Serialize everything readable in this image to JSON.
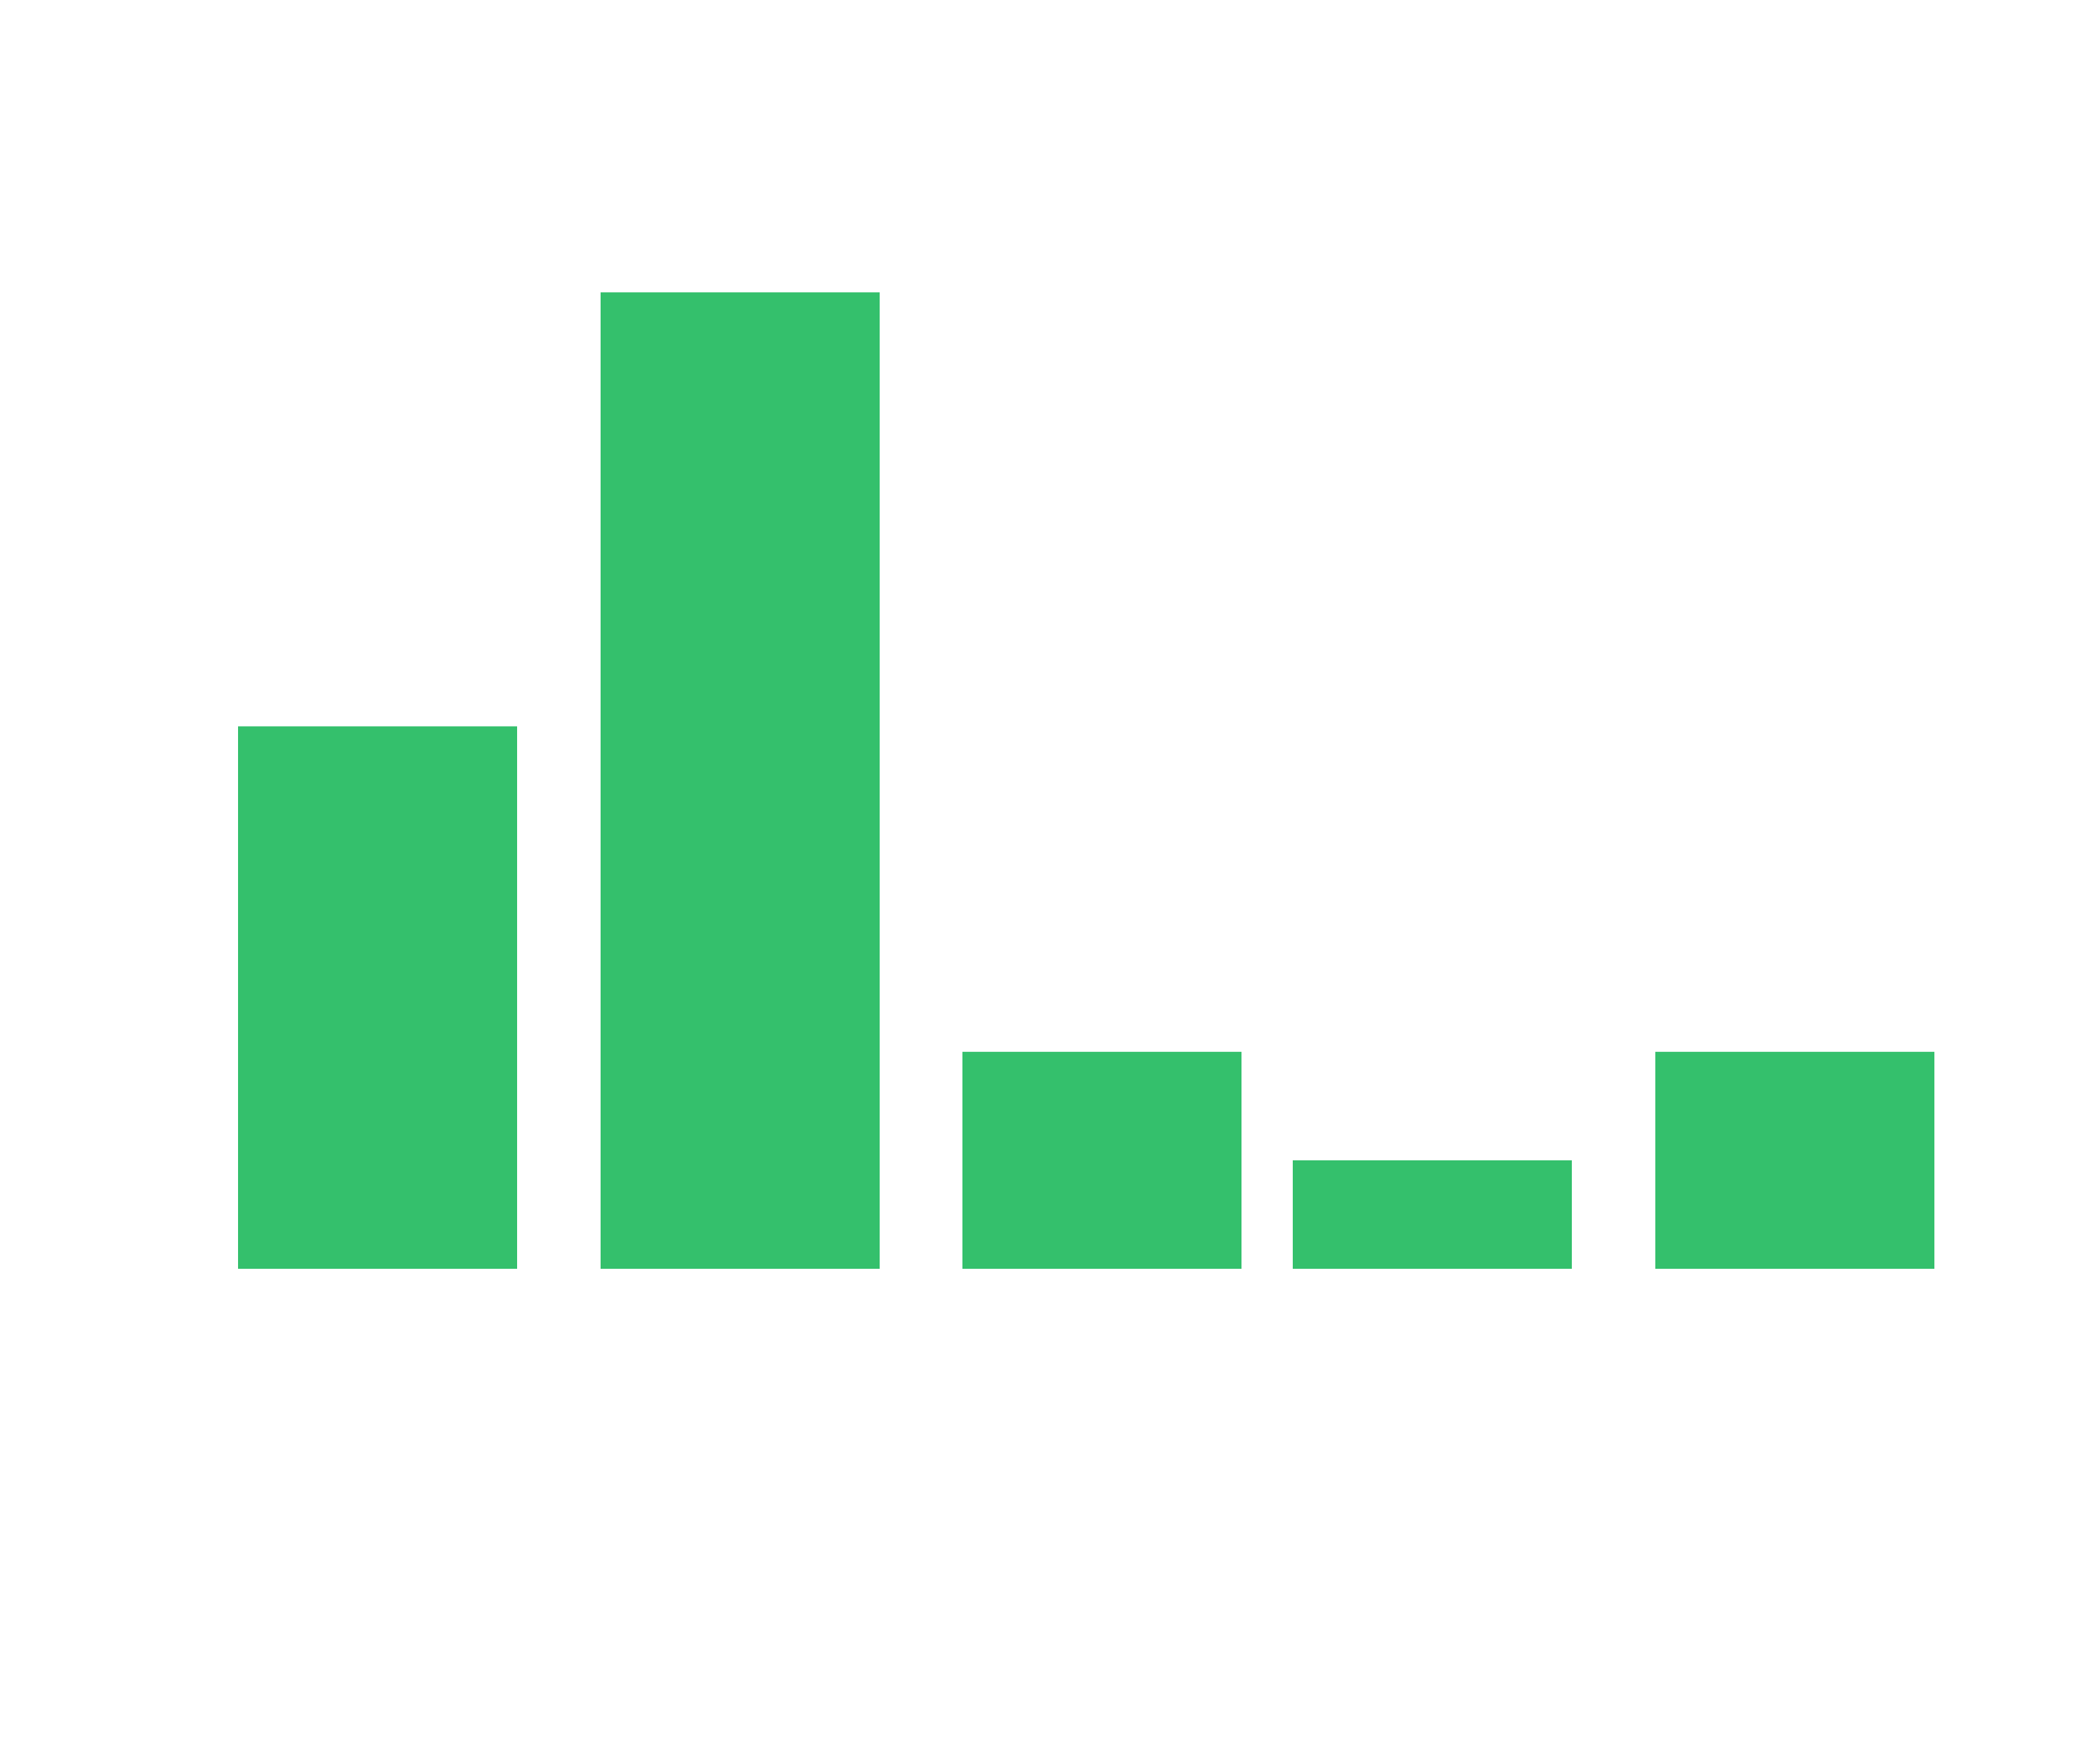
{
  "chart_data": {
    "type": "bar",
    "categories": [
      null,
      null,
      null,
      null,
      null
    ],
    "values": [
      5,
      9,
      2,
      1,
      2
    ],
    "color": "#34c06c",
    "ylim": [
      0,
      10
    ]
  }
}
